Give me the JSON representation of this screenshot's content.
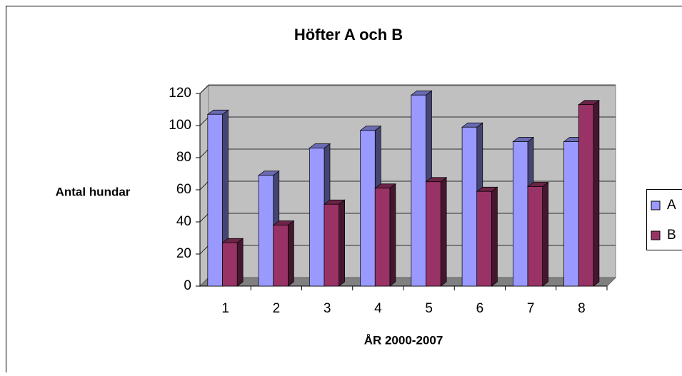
{
  "chart_data": {
    "type": "bar3d",
    "title": "Höfter A och B",
    "x_label": "ÅR 2000-2007",
    "y_label": "Antal hundar",
    "categories": [
      "1",
      "2",
      "3",
      "4",
      "5",
      "6",
      "7",
      "8"
    ],
    "series": [
      {
        "name": "A",
        "color": "#9999ff",
        "values": [
          107,
          69,
          86,
          97,
          119,
          99,
          90,
          90
        ]
      },
      {
        "name": "B",
        "color": "#993366",
        "values": [
          27,
          38,
          51,
          61,
          65,
          59,
          62,
          113
        ]
      }
    ],
    "ylim": [
      0,
      120
    ],
    "yticks": [
      0,
      20,
      40,
      60,
      80,
      100,
      120
    ],
    "grid": true,
    "legend": "right"
  }
}
